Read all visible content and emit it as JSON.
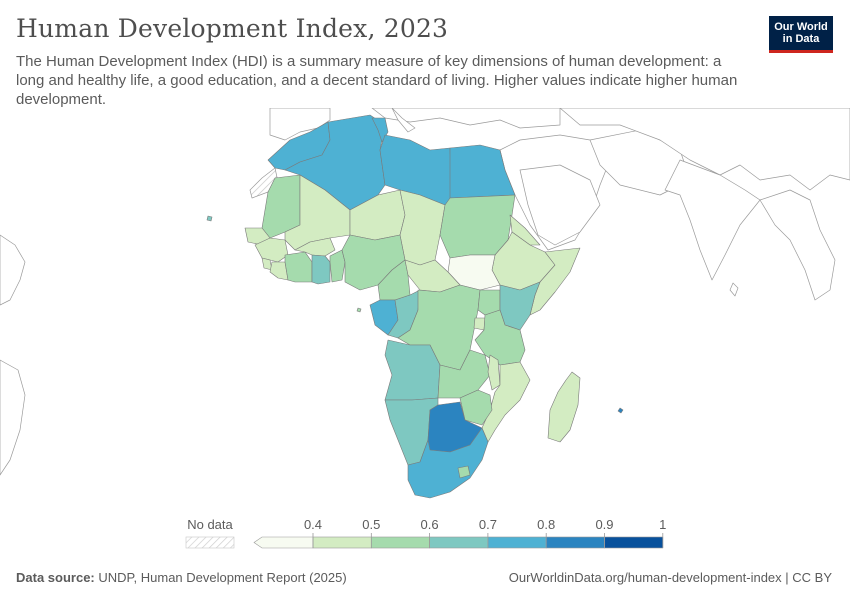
{
  "header": {
    "title": "Human Development Index, 2023",
    "subtitle": "The Human Development Index (HDI) is a summary measure of key dimensions of human development: a long and healthy life, a good education, and a decent standard of living. Higher values indicate higher human development."
  },
  "logo": {
    "line1": "Our World",
    "line2": "in Data"
  },
  "legend": {
    "no_data_label": "No data",
    "ticks": [
      "0.4",
      "0.5",
      "0.6",
      "0.7",
      "0.8",
      "0.9",
      "1"
    ],
    "colors": [
      "#f7fbf1",
      "#d3ecc2",
      "#a5dbad",
      "#7ec8c1",
      "#4eb1d3",
      "#2b84c0",
      "#08519c"
    ],
    "no_data_hatch": "#d0d0d0"
  },
  "footer": {
    "source_label": "Data source:",
    "source_text": "UNDP, Human Development Report (2025)",
    "url": "OurWorldinData.org/human-development-index | CC BY"
  },
  "colors": {
    "outline": "#8f8f8f",
    "land_no_region": "#ffffff",
    "accent_navy": "#002147",
    "accent_red": "#ce261e"
  }
}
